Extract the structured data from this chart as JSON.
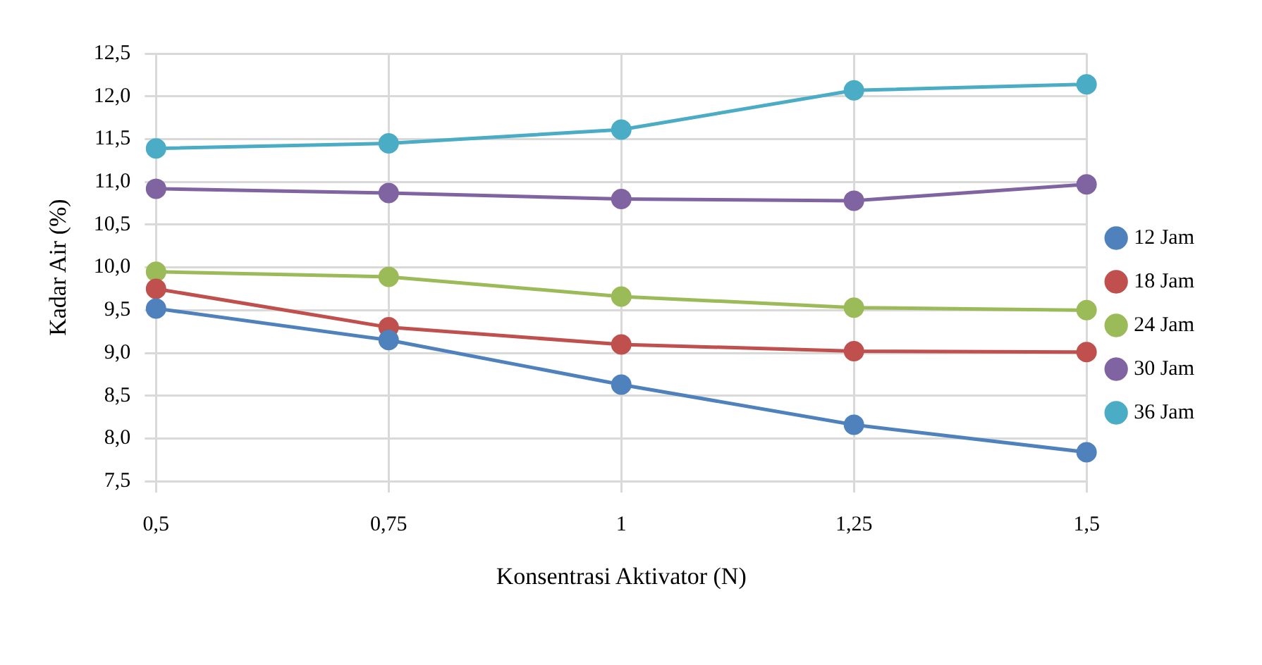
{
  "chart_data": {
    "type": "line",
    "xlabel": "Konsentrasi Aktivator (N)",
    "ylabel": "Kadar Air (%)",
    "categories": [
      "0,5",
      "0,75",
      "1",
      "1,25",
      "1,5"
    ],
    "series": [
      {
        "name": "12 Jam",
        "color": "#4f81bd",
        "values": [
          9.52,
          9.15,
          8.63,
          8.16,
          7.84
        ]
      },
      {
        "name": "18 Jam",
        "color": "#c0504d",
        "values": [
          9.75,
          9.3,
          9.1,
          9.02,
          9.01
        ]
      },
      {
        "name": "24 Jam",
        "color": "#9bbb59",
        "values": [
          9.95,
          9.89,
          9.66,
          9.53,
          9.5
        ]
      },
      {
        "name": "30 Jam",
        "color": "#8064a2",
        "values": [
          10.92,
          10.87,
          10.8,
          10.78,
          10.97
        ]
      },
      {
        "name": "36 Jam",
        "color": "#4bacc6",
        "values": [
          11.39,
          11.45,
          11.61,
          12.07,
          12.14
        ]
      }
    ],
    "ylim": [
      7.5,
      12.5
    ],
    "yticks": [
      {
        "value": 7.5,
        "label": "7,5"
      },
      {
        "value": 8,
        "label": "8,0"
      },
      {
        "value": 8.5,
        "label": "8,5"
      },
      {
        "value": 9,
        "label": "9,0"
      },
      {
        "value": 9.5,
        "label": "9,5"
      },
      {
        "value": 10,
        "label": "10,0"
      },
      {
        "value": 10.5,
        "label": "10,5"
      },
      {
        "value": 11,
        "label": "11,0"
      },
      {
        "value": 11.5,
        "label": "11,5"
      },
      {
        "value": 12,
        "label": "12,0"
      },
      {
        "value": 12.5,
        "label": "12,5"
      }
    ],
    "grid": true,
    "legend": "right",
    "marker": "circle",
    "line_style": "solid"
  }
}
